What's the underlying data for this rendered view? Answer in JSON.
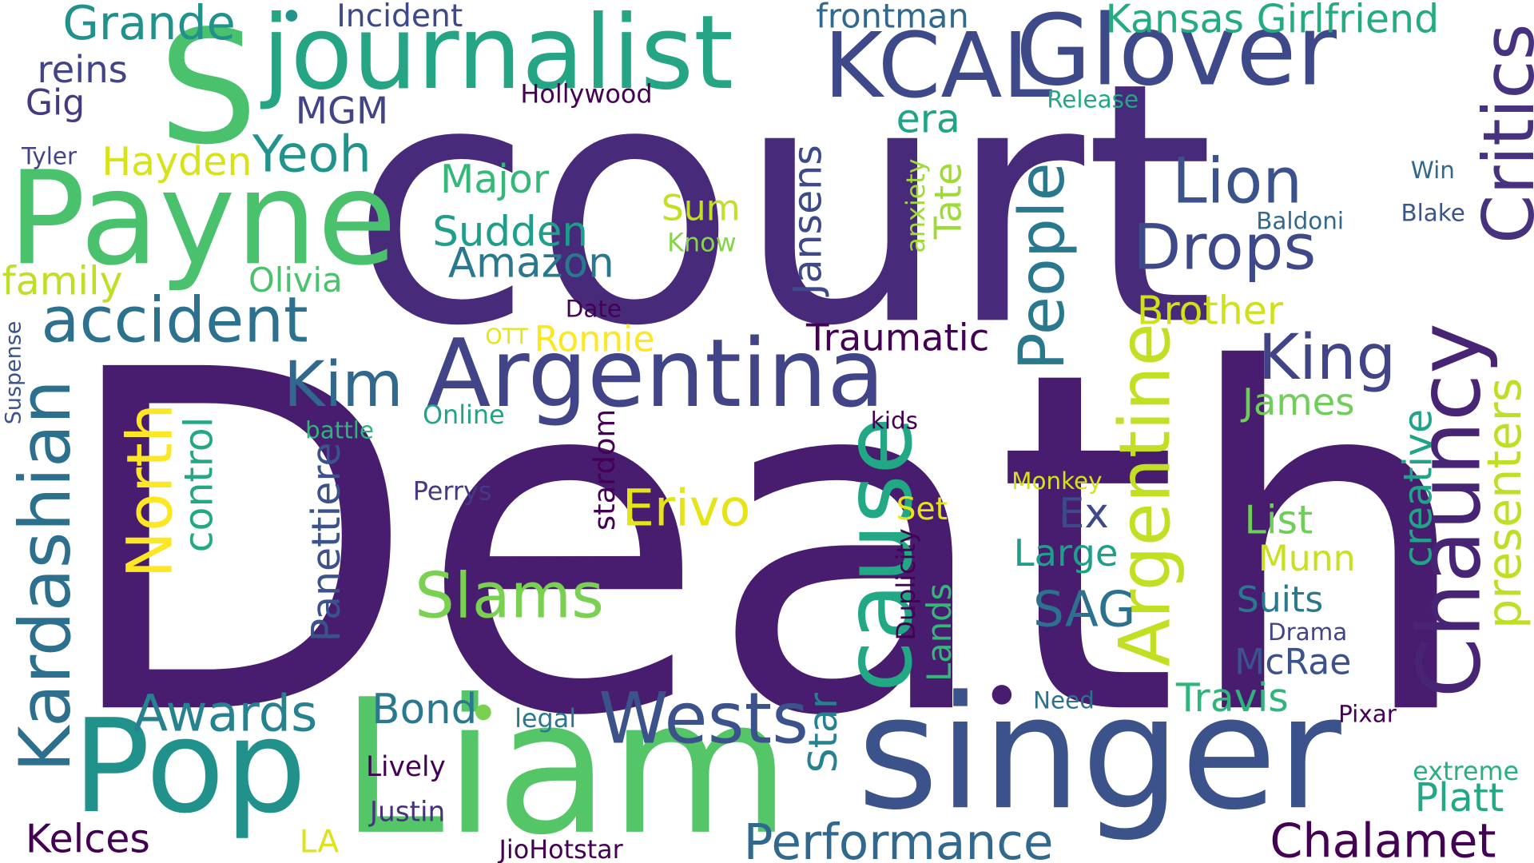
{
  "words": {
    "death": "Death",
    "court": "court",
    "liam": "Liam",
    "singer": "singer",
    "payne": "Payne",
    "s": "S",
    "journalist": "journalist",
    "kcal": "KCAL",
    "glover": "Glover",
    "argentina": "Argentina",
    "pop": "Pop",
    "wests": "Wests",
    "cause": "cause",
    "chauncy": "Chauncy",
    "critics": "Critics",
    "argentine": "Argentine",
    "people": "People",
    "kardashian": "Kardashian",
    "accident": "accident",
    "north": "North",
    "lion": "Lion",
    "drops": "Drops",
    "king": "King",
    "kim": "Kim",
    "slams": "Slams",
    "performance": "Performance",
    "chalamet": "Chalamet",
    "awards": "Awards",
    "erivo": "Erivo",
    "grande": "Grande",
    "kansas_girlfriend": "Kansas Girlfriend",
    "yeoh": "Yeoh",
    "presenters": "presenters",
    "major": "Major",
    "sudden": "Sudden",
    "amazon": "Amazon",
    "control": "control",
    "jansens": "Jansens",
    "hayden": "Hayden",
    "traumatic": "Traumatic",
    "brother": "Brother",
    "panettiere": "Panettiere",
    "stardom": "stardom",
    "travis": "Travis",
    "mcrae": "McRae",
    "suits": "Suits",
    "list": "List",
    "munn": "Munn",
    "large": "Large",
    "ex": "Ex",
    "sag": "SAG",
    "bond": "Bond",
    "star": "Star",
    "kelces": "Kelces",
    "platt": "Platt",
    "creative": "creative",
    "family": "family",
    "olivia": "Olivia",
    "mgm": "MGM",
    "reins": "reins",
    "gig": "Gig",
    "era": "era",
    "tate": "Tate",
    "james": "James",
    "frontman": "frontman",
    "incident": "Incident",
    "lands": "Lands",
    "duplicity": "Duplicity",
    "anxiety": "anxiety",
    "sum": "Sum",
    "know": "Know",
    "ronnie": "Ronnie",
    "ott": "OTT",
    "date": "Date",
    "online": "Online",
    "battle": "battle",
    "kids": "kids",
    "perrys": "Perrys",
    "monkey": "Monkey",
    "set": "Set",
    "drama": "Drama",
    "pixar": "Pixar",
    "need": "Need",
    "legal": "legal",
    "lively": "Lively",
    "justin": "Justin",
    "la": "LA",
    "jiohotstar": "JioHotstar",
    "extreme": "extreme",
    "hollywood": "Hollywood",
    "release": "Release",
    "tyler": "Tyler",
    "win": "Win",
    "baldoni": "Baldoni",
    "blake": "Blake",
    "suspense": "Suspense"
  },
  "palette": {
    "dark_purple": "#440154",
    "indigo": "#482475",
    "slate_blue": "#414487",
    "steel_blue": "#355f8d",
    "teal_blue": "#2a788e",
    "teal": "#21918c",
    "sea_green": "#22a884",
    "green": "#44bf70",
    "lime_green": "#7ad151",
    "yellow_green": "#bddf26",
    "yellow": "#fde725"
  }
}
